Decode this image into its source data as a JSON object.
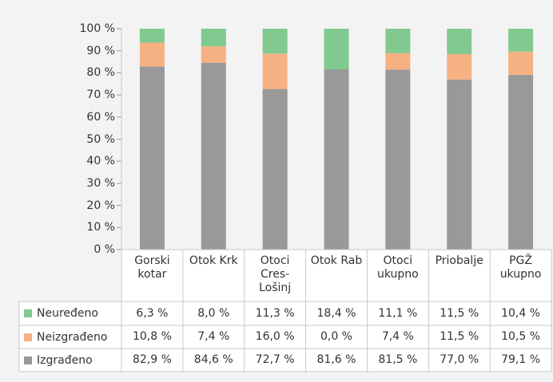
{
  "chart_data": {
    "type": "stacked_bar",
    "categories": [
      "Gorski kotar",
      "Otok Krk",
      "Otoci Cres-Lošinj",
      "Otok Rab",
      "Otoci ukupno",
      "Priobalje",
      "PGŽ ukupno"
    ],
    "series": [
      {
        "name": "Neuređeno",
        "color": "#82c98f",
        "values": [
          6.3,
          8.0,
          11.3,
          18.4,
          11.1,
          11.5,
          10.4
        ],
        "value_labels": [
          "6,3 %",
          "8,0 %",
          "11,3 %",
          "18,4 %",
          "11,1 %",
          "11,5 %",
          "10,4 %"
        ]
      },
      {
        "name": "Neizgrađeno",
        "color": "#f6b183",
        "values": [
          10.8,
          7.4,
          16.0,
          0.0,
          7.4,
          11.5,
          10.5
        ],
        "value_labels": [
          "10,8 %",
          "7,4 %",
          "16,0 %",
          "0,0 %",
          "7,4 %",
          "11,5 %",
          "10,5 %"
        ]
      },
      {
        "name": "Izgrađeno",
        "color": "#999999",
        "values": [
          82.9,
          84.6,
          72.7,
          81.6,
          81.5,
          77.0,
          79.1
        ],
        "value_labels": [
          "82,9 %",
          "84,6 %",
          "72,7 %",
          "81,6 %",
          "81,5 %",
          "77,0 %",
          "79,1 %"
        ]
      }
    ],
    "ylim": [
      0,
      100
    ],
    "yticks": [
      {
        "value": 0,
        "label": "0 %"
      },
      {
        "value": 10,
        "label": "10 %"
      },
      {
        "value": 20,
        "label": "20 %"
      },
      {
        "value": 30,
        "label": "30 %"
      },
      {
        "value": 40,
        "label": "40 %"
      },
      {
        "value": 50,
        "label": "50 %"
      },
      {
        "value": 60,
        "label": "60 %"
      },
      {
        "value": 70,
        "label": "70 %"
      },
      {
        "value": 80,
        "label": "80 %"
      },
      {
        "value": 90,
        "label": "90 %"
      },
      {
        "value": 100,
        "label": "100 %"
      }
    ]
  }
}
